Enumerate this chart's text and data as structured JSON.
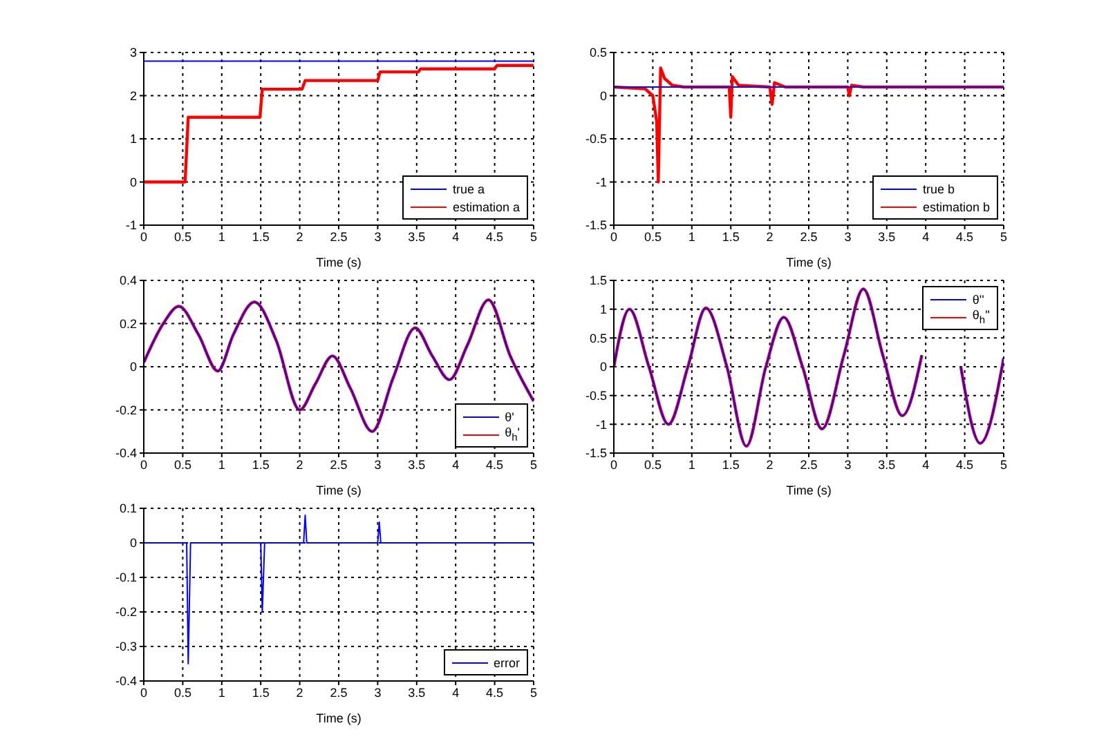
{
  "chart_data": [
    {
      "type": "line",
      "xlabel": "Time (s)",
      "xlim": [
        0,
        5
      ],
      "xticks": [
        0,
        0.5,
        1,
        1.5,
        2,
        2.5,
        3,
        3.5,
        4,
        4.5,
        5
      ],
      "ylim": [
        -1,
        3
      ],
      "yticks": [
        -1,
        0,
        1,
        2,
        3
      ],
      "grid": true,
      "legend": "bottom right",
      "series": [
        {
          "name": "true a",
          "color": "#0000ff",
          "x": [
            0,
            5
          ],
          "values": [
            2.8,
            2.8
          ]
        },
        {
          "name": "estimation a",
          "color": "#ff0000",
          "x": [
            0,
            0.53,
            0.57,
            1.49,
            1.52,
            2.03,
            2.07,
            3.0,
            3.03,
            3.52,
            3.55,
            4.5,
            4.53,
            5
          ],
          "values": [
            0,
            0,
            1.5,
            1.5,
            2.15,
            2.15,
            2.35,
            2.35,
            2.55,
            2.55,
            2.62,
            2.62,
            2.7,
            2.7
          ]
        }
      ]
    },
    {
      "type": "line",
      "xlabel": "Time (s)",
      "xlim": [
        0,
        5
      ],
      "xticks": [
        0,
        0.5,
        1,
        1.5,
        2,
        2.5,
        3,
        3.5,
        4,
        4.5,
        5
      ],
      "ylim": [
        -1.5,
        0.5
      ],
      "yticks": [
        -1.5,
        -1,
        -0.5,
        0,
        0.5
      ],
      "grid": true,
      "legend": "bottom right",
      "series": [
        {
          "name": "true b",
          "color": "#0000ff",
          "x": [
            0,
            5
          ],
          "values": [
            0.1,
            0.1
          ]
        },
        {
          "name": "estimation b",
          "color": "#ff0000",
          "x": [
            0,
            0.4,
            0.5,
            0.55,
            0.57,
            0.6,
            0.65,
            0.75,
            0.9,
            1.48,
            1.5,
            1.52,
            1.6,
            2.0,
            2.03,
            2.06,
            2.2,
            3.0,
            3.02,
            3.05,
            3.2,
            5
          ],
          "values": [
            0.1,
            0.08,
            0.0,
            -0.3,
            -1.0,
            0.32,
            0.2,
            0.12,
            0.1,
            0.1,
            -0.25,
            0.22,
            0.12,
            0.1,
            -0.1,
            0.15,
            0.1,
            0.1,
            0.0,
            0.12,
            0.1,
            0.1
          ]
        }
      ]
    },
    {
      "type": "line",
      "xlabel": "Time (s)",
      "xlim": [
        0,
        5
      ],
      "xticks": [
        0,
        0.5,
        1,
        1.5,
        2,
        2.5,
        3,
        3.5,
        4,
        4.5,
        5
      ],
      "ylim": [
        -0.4,
        0.4
      ],
      "yticks": [
        -0.4,
        -0.2,
        0,
        0.2,
        0.4
      ],
      "grid": true,
      "legend": "bottom right",
      "series": [
        {
          "name": "θ'",
          "color": "#0000ff",
          "x": [
            0,
            0.25,
            0.45,
            0.7,
            0.95,
            1.15,
            1.42,
            1.7,
            2.0,
            2.2,
            2.42,
            2.65,
            2.93,
            3.2,
            3.48,
            3.7,
            3.92,
            4.15,
            4.42,
            4.7,
            5
          ],
          "values": [
            0.02,
            0.2,
            0.28,
            0.15,
            -0.02,
            0.15,
            0.3,
            0.12,
            -0.2,
            -0.08,
            0.05,
            -0.1,
            -0.3,
            -0.05,
            0.18,
            0.05,
            -0.06,
            0.1,
            0.31,
            0.05,
            -0.16
          ]
        },
        {
          "name": "θ$_{h}$'",
          "color": "#ff0000",
          "x": [
            0,
            0.25,
            0.45,
            0.7,
            0.95,
            1.15,
            1.42,
            1.7,
            2.0,
            2.2,
            2.42,
            2.65,
            2.93,
            3.2,
            3.48,
            3.7,
            3.92,
            4.15,
            4.42,
            4.7,
            5
          ],
          "values": [
            0.02,
            0.2,
            0.28,
            0.15,
            -0.02,
            0.15,
            0.3,
            0.12,
            -0.2,
            -0.08,
            0.05,
            -0.1,
            -0.3,
            -0.05,
            0.18,
            0.05,
            -0.06,
            0.1,
            0.31,
            0.05,
            -0.16
          ]
        }
      ]
    },
    {
      "type": "line",
      "xlabel": "Time (s)",
      "xlim": [
        0,
        5
      ],
      "xticks": [
        0,
        0.5,
        1,
        1.5,
        2,
        2.5,
        3,
        3.5,
        4,
        4.5,
        5
      ],
      "ylim": [
        -1.5,
        1.5
      ],
      "yticks": [
        -1.5,
        -1,
        -0.5,
        0,
        0.5,
        1,
        1.5
      ],
      "grid": true,
      "legend": "top right",
      "series": [
        {
          "name": "θ''",
          "color": "#0000ff",
          "x": [
            0,
            0.2,
            0.45,
            0.7,
            0.95,
            1.18,
            1.45,
            1.7,
            1.95,
            2.18,
            2.42,
            2.67,
            2.95,
            3.2,
            3.45,
            3.7,
            3.95,
            4.2,
            4.45,
            4.7,
            5
          ],
          "values": [
            0.0,
            1.0,
            0.0,
            -1.0,
            0.0,
            1.02,
            0.0,
            -1.38,
            0.0,
            0.86,
            0.0,
            -1.08,
            0.2,
            1.35,
            0.2,
            -0.85,
            0.2,
            null,
            0.0,
            -1.33,
            0.15
          ]
        },
        {
          "name": "θ$_{h}$''",
          "color": "#ff0000",
          "x": [
            0,
            0.2,
            0.45,
            0.7,
            0.95,
            1.18,
            1.45,
            1.7,
            1.95,
            2.18,
            2.42,
            2.67,
            2.95,
            3.2,
            3.45,
            3.7,
            3.95,
            4.2,
            4.45,
            4.7,
            5
          ],
          "values": [
            0.0,
            1.0,
            0.0,
            -1.0,
            0.0,
            1.02,
            0.0,
            -1.38,
            0.0,
            0.86,
            0.0,
            -1.08,
            0.2,
            1.35,
            0.2,
            -0.85,
            0.2,
            null,
            0.0,
            -1.33,
            0.15
          ]
        }
      ]
    },
    {
      "type": "line",
      "xlabel": "Time (s)",
      "xlim": [
        0,
        5
      ],
      "xticks": [
        0,
        0.5,
        1,
        1.5,
        2,
        2.5,
        3,
        3.5,
        4,
        4.5,
        5
      ],
      "ylim": [
        -0.4,
        0.1
      ],
      "yticks": [
        -0.4,
        -0.3,
        -0.2,
        -0.1,
        0,
        0.1
      ],
      "grid": true,
      "legend": "bottom right",
      "series": [
        {
          "name": "error",
          "color": "#0000ff",
          "x": [
            0,
            0.55,
            0.57,
            0.6,
            1.5,
            1.52,
            1.55,
            2.05,
            2.07,
            2.09,
            3.0,
            3.02,
            3.04,
            5
          ],
          "values": [
            0,
            0,
            -0.35,
            0,
            0,
            -0.2,
            0,
            0,
            0.08,
            0,
            0,
            0.06,
            0,
            0
          ]
        }
      ]
    }
  ]
}
